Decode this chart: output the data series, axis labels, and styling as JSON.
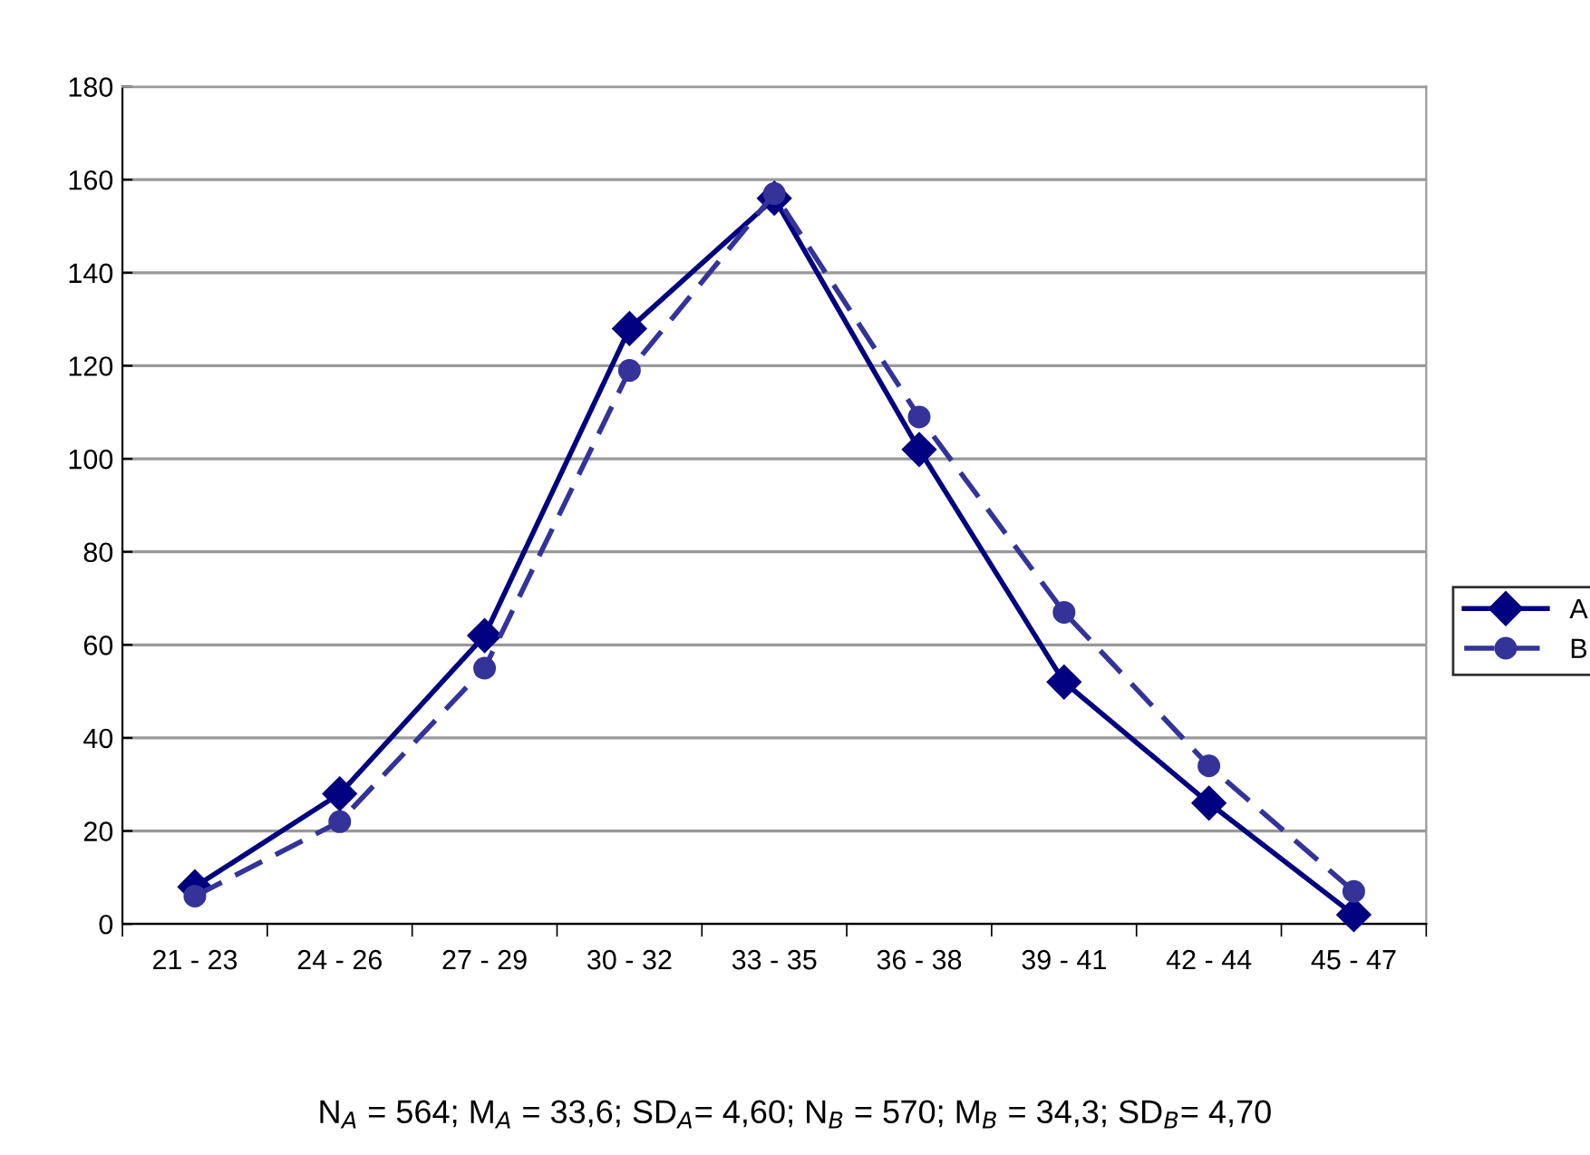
{
  "chart_data": {
    "type": "line",
    "categories": [
      "21 - 23",
      "24 - 26",
      "27 - 29",
      "30 - 32",
      "33 - 35",
      "36 - 38",
      "39 - 41",
      "42 - 44",
      "45 - 47"
    ],
    "series": [
      {
        "name": "A",
        "color": "#000080",
        "values": [
          8,
          28,
          62,
          128,
          156,
          102,
          52,
          26,
          2
        ],
        "marker": "diamond",
        "line_style": "solid"
      },
      {
        "name": "B",
        "color": "#333399",
        "values": [
          6,
          22,
          55,
          119,
          157,
          109,
          67,
          34,
          7
        ],
        "marker": "circle",
        "line_style": "dashed"
      }
    ],
    "ylim": [
      0,
      180
    ],
    "yticks": [
      0,
      20,
      40,
      60,
      80,
      100,
      120,
      140,
      160,
      180
    ],
    "grid": "y",
    "legend": "right",
    "annotations": [
      "N$_{A}$ = 564; M$_{A}$ = 33,6; SD$_{A}$= 4,60; N$_{B}$ = 570; M$_{B}$ = 34,3; SD$_{B}$= 4,70"
    ]
  }
}
